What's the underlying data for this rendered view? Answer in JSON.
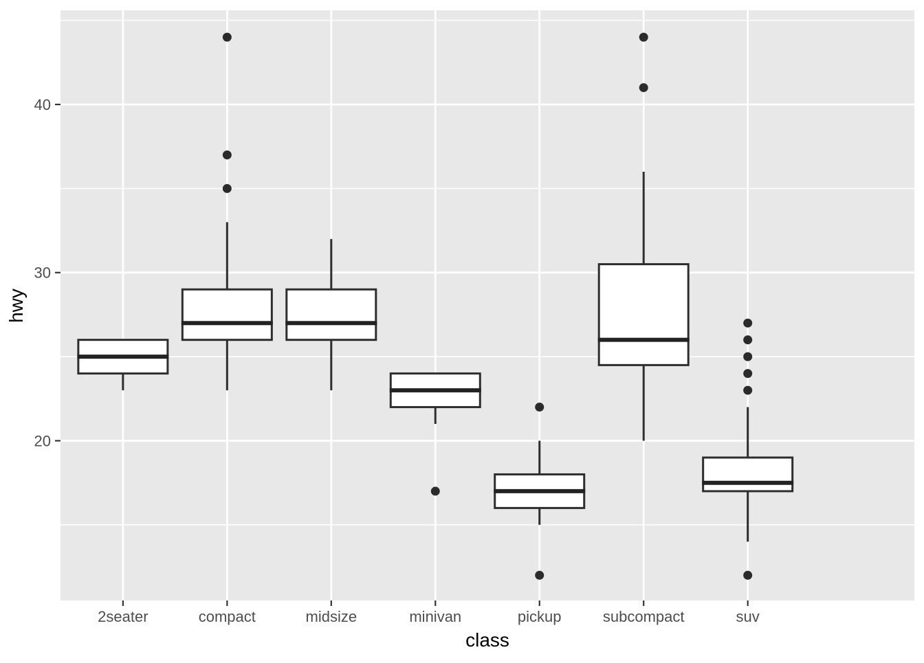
{
  "chart_data": {
    "type": "boxplot",
    "title": "",
    "xlabel": "class",
    "ylabel": "hwy",
    "categories": [
      "2seater",
      "compact",
      "midsize",
      "minivan",
      "pickup",
      "subcompact",
      "suv"
    ],
    "series": [
      {
        "category": "2seater",
        "whisker_low": 23,
        "q1": 24,
        "median": 25,
        "q3": 26,
        "whisker_high": 26,
        "outliers": []
      },
      {
        "category": "compact",
        "whisker_low": 23,
        "q1": 26,
        "median": 27,
        "q3": 29,
        "whisker_high": 33,
        "outliers": [
          35,
          37,
          44
        ]
      },
      {
        "category": "midsize",
        "whisker_low": 23,
        "q1": 26,
        "median": 27,
        "q3": 29,
        "whisker_high": 32,
        "outliers": []
      },
      {
        "category": "minivan",
        "whisker_low": 21,
        "q1": 22,
        "median": 23,
        "q3": 24,
        "whisker_high": 24,
        "outliers": [
          17
        ]
      },
      {
        "category": "pickup",
        "whisker_low": 15,
        "q1": 16,
        "median": 17,
        "q3": 18,
        "whisker_high": 20,
        "outliers": [
          12,
          22
        ]
      },
      {
        "category": "subcompact",
        "whisker_low": 20,
        "q1": 24.5,
        "median": 26,
        "q3": 30.5,
        "whisker_high": 36,
        "outliers": [
          41,
          44
        ]
      },
      {
        "category": "suv",
        "whisker_low": 14,
        "q1": 17,
        "median": 17.5,
        "q3": 19,
        "whisker_high": 22,
        "outliers": [
          12,
          23,
          24,
          25,
          26,
          27
        ]
      }
    ],
    "y_axis": {
      "major_ticks": [
        20,
        30,
        40
      ],
      "major_tick_labels": [
        "20",
        "30",
        "40"
      ],
      "minor_ticks": [
        15,
        25,
        35,
        45
      ],
      "range": [
        10.5,
        45.6
      ]
    },
    "x_axis": {
      "tick_labels": [
        "2seater",
        "compact",
        "midsize",
        "minivan",
        "pickup",
        "subcompact",
        "suv"
      ]
    },
    "legend": "none",
    "grid": "on",
    "colors": {
      "panel_background": "#E8E8E8",
      "gridline": "#FFFFFF",
      "box_fill": "#FFFFFF",
      "box_stroke": "#2E2E2E",
      "median_stroke": "#222222",
      "outlier_fill": "#2B2B2B",
      "tick_mark": "#333333",
      "tick_label": "#4D4D4D",
      "axis_title": "#000000"
    }
  }
}
